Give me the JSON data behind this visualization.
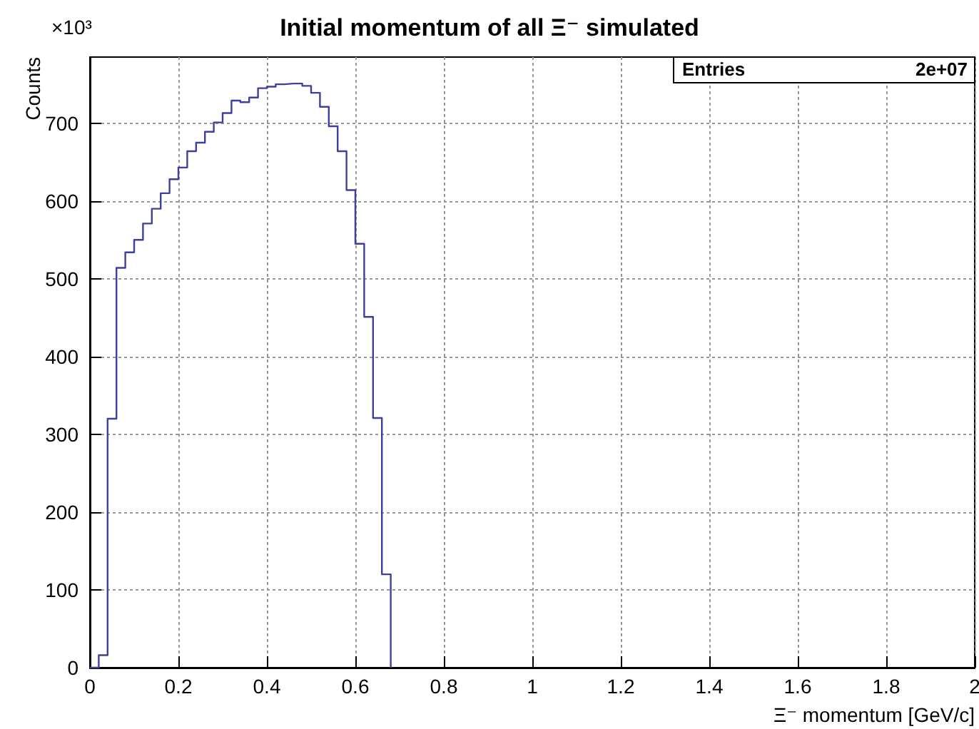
{
  "chart_data": {
    "type": "histogram",
    "title": "Initial momentum of all Ξ⁻ simulated",
    "xlabel": "Ξ⁻ momentum [GeV/c]",
    "ylabel": "Counts",
    "annotations": [
      "×10³",
      "Entries",
      "2e+07"
    ],
    "bins": [
      0,
      0.02,
      0.04,
      0.06,
      0.08,
      0.1,
      0.12,
      0.14,
      0.16,
      0.18,
      0.2,
      0.22,
      0.24,
      0.26,
      0.28,
      0.3,
      0.32,
      0.34,
      0.36,
      0.38,
      0.4,
      0.42,
      0.44,
      0.46,
      0.48,
      0.5,
      0.52,
      0.54,
      0.56,
      0.58,
      0.6,
      0.62,
      0.64,
      0.66,
      0.68
    ],
    "values": [
      0,
      16,
      320,
      514,
      534,
      550,
      571,
      590,
      610,
      628,
      643,
      664,
      675,
      689,
      701,
      713,
      729,
      727,
      733,
      745,
      747,
      750,
      751,
      751,
      748,
      739,
      721,
      696,
      664,
      614,
      545,
      451,
      321,
      120
    ],
    "color": "#3f3f9f",
    "xlim": [
      0,
      2
    ],
    "ylim": [
      0,
      785
    ],
    "xticks": [
      0,
      0.2,
      0.4,
      0.6,
      0.8,
      1,
      1.2,
      1.4,
      1.6,
      1.8,
      2
    ],
    "yticks": [
      0,
      100,
      200,
      300,
      400,
      500,
      600,
      700
    ],
    "grid": true
  }
}
